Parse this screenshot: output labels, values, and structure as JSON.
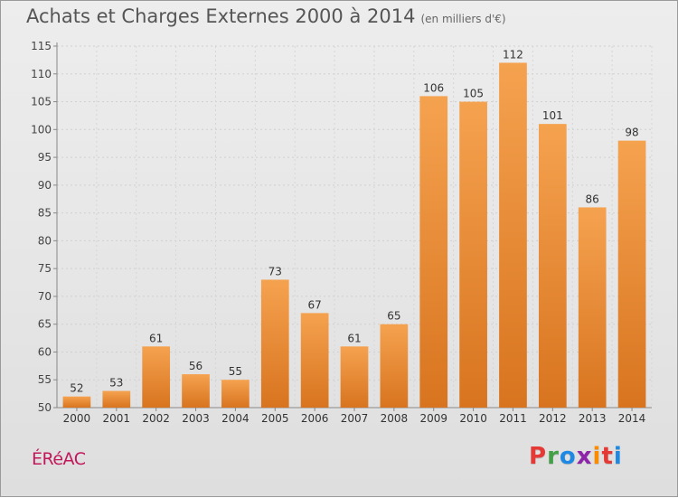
{
  "header": {
    "title": "Achats et Charges Externes 2000 à 2014",
    "subtitle": "(en milliers d'€)"
  },
  "footer": {
    "place": "ÉRéAC",
    "brand_letters": [
      "P",
      "r",
      "o",
      "x",
      "i",
      "t",
      "i"
    ],
    "brand_colors": [
      "#e53935",
      "#43a047",
      "#1e88e5",
      "#8e24aa",
      "#fb8c00",
      "#e53935",
      "#1e88e5"
    ]
  },
  "chart_data": {
    "type": "bar",
    "categories": [
      "2000",
      "2001",
      "2002",
      "2003",
      "2004",
      "2005",
      "2006",
      "2007",
      "2008",
      "2009",
      "2010",
      "2011",
      "2012",
      "2013",
      "2014"
    ],
    "values": [
      52,
      53,
      61,
      56,
      55,
      73,
      67,
      61,
      65,
      106,
      105,
      112,
      101,
      86,
      98
    ],
    "title": "Achats et Charges Externes 2000 à 2014",
    "ylim": [
      50,
      115
    ],
    "yticks": [
      50,
      55,
      60,
      65,
      70,
      75,
      80,
      85,
      90,
      95,
      100,
      105,
      110,
      115
    ],
    "grid": true,
    "bar_color_top": "#f5a24f",
    "bar_color_bottom": "#d8741f"
  }
}
